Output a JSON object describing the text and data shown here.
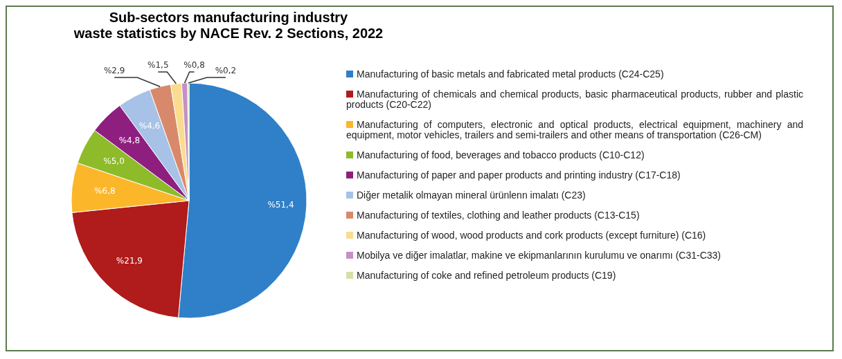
{
  "chart_data": {
    "type": "pie",
    "title": "Sub-sectors manufacturing industry\nwaste statistics by NACE Rev. 2 Sections, 2022",
    "categories": [
      "Manufacturing of basic metals and fabricated metal products (C24-C25)",
      "Manufacturing of chemicals and chemical products, basic pharmaceutical products, rubber and plastic products (C20-C22)",
      "Manufacturing of computers, electronic and optical products, electrical equipment, machinery and equipment, motor vehicles, trailers and semi-trailers and other means of transportation (C26-CM)",
      "Manufacturing of food, beverages and tobacco products (C10-C12)",
      "Manufacturing of paper and paper products and printing industry (C17-C18)",
      "Diğer metalik olmayan mineral ürünlenn imalatı (C23)",
      "Manufacturing of textiles, clothing and leather products (C13-C15)",
      "Manufacturing of wood, wood products and cork products (except furniture) (C16)",
      "Mobilya ve diğer imalatlar, makine ve ekipmanlarının kurulumu ve onarımı (C31-C33)",
      "Manufacturing of coke and refined petroleum products (C19)"
    ],
    "values": [
      51.4,
      21.9,
      6.8,
      5.0,
      4.8,
      4.6,
      2.9,
      1.5,
      0.8,
      0.2
    ],
    "colors": [
      "#2f80c8",
      "#b01b1b",
      "#fbb62a",
      "#8dbb2a",
      "#8e1f7f",
      "#a7c2e6",
      "#d9896b",
      "#fadc8e",
      "#c690c4",
      "#d4e0a8"
    ],
    "value_labels": [
      "%51,4",
      "%21,9",
      "%6,8",
      "%5,0",
      "%4,8",
      "%4,6",
      "%2,9",
      "%1,5",
      "%0,8",
      "%0,2"
    ],
    "legend": "right"
  }
}
